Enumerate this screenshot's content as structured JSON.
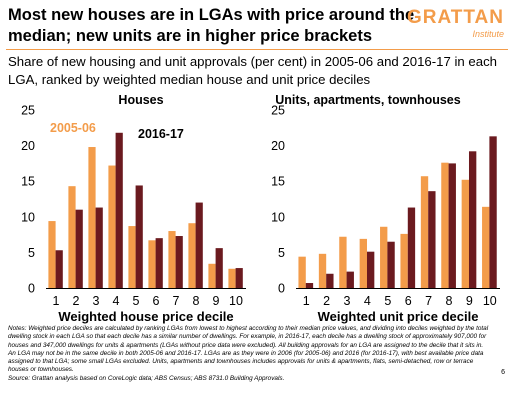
{
  "title": "Most new houses are in LGAs with price around the median; new units are in higher price brackets",
  "logo": {
    "main": "GRATTAN",
    "sub": "Institute"
  },
  "subtitle": "Share of new housing and unit approvals (per cent) in 2005-06 and 2016-17 in each LGA, ranked by weighted median house and unit price deciles",
  "colors": {
    "series_2005": "#f39c4a",
    "series_2016": "#6b1a1f",
    "accent": "#f39c4a"
  },
  "chart_data": [
    {
      "type": "bar",
      "title": "Houses",
      "xlabel": "Weighted house price decile",
      "ylabel": "",
      "ylim": [
        0,
        25
      ],
      "yticks": [
        "0",
        "5",
        "10",
        "15",
        "20",
        "25"
      ],
      "categories": [
        "1",
        "2",
        "3",
        "4",
        "5",
        "6",
        "7",
        "8",
        "9",
        "10"
      ],
      "series": [
        {
          "name": "2005-06",
          "values": [
            9.4,
            14.3,
            19.8,
            17.2,
            8.7,
            6.7,
            8.0,
            9.1,
            3.4,
            2.7
          ]
        },
        {
          "name": "2016-17",
          "values": [
            5.3,
            11.0,
            11.3,
            21.8,
            14.4,
            7.0,
            7.3,
            12.0,
            5.6,
            2.8
          ]
        }
      ],
      "legend": "inline-top"
    },
    {
      "type": "bar",
      "title": "Units, apartments, townhouses",
      "xlabel": "Weighted unit price decile",
      "ylabel": "",
      "ylim": [
        0,
        25
      ],
      "yticks": [
        "0",
        "5",
        "10",
        "15",
        "20",
        "25"
      ],
      "categories": [
        "1",
        "2",
        "3",
        "4",
        "5",
        "6",
        "7",
        "8",
        "9",
        "10"
      ],
      "series": [
        {
          "name": "2005-06",
          "values": [
            4.4,
            4.8,
            7.2,
            6.9,
            8.6,
            7.6,
            15.7,
            17.6,
            15.2,
            11.4
          ]
        },
        {
          "name": "2016-17",
          "values": [
            0.7,
            2.0,
            2.3,
            5.1,
            6.5,
            11.3,
            13.6,
            17.5,
            19.2,
            21.3
          ]
        }
      ]
    }
  ],
  "notes": [
    "Notes: Weighted price deciles are calculated by ranking LGAs from lowest to highest according to their median price values, and dividing into deciles weighted by the total dwelling stock in each LGA so that each decile has a similar number of dwellings. For example, in 2016-17, each decile has a dwelling stock of approximately 907,000 for houses and 347,000 dwellings for units & apartments (LGAs without price data were excluded). All building approvals for an LGA are assigned to the decile that it sits in. An LGA may not be in the same decile in both 2005-06 and 2016-17. LGAs are as they were in 2006 (for 2005-06) and 2016 (for 2016-17), with best available price data assigned to that LGA; some small LGAs excluded. Units, apartments and townhouses includes approvals for units & apartments, flats, semi-detached, row or terrace houses or townhouses.",
    "Source: Grattan analysis based on CoreLogic data; ABS Census; ABS 8731.0 Building Approvals."
  ],
  "page_number": "6"
}
